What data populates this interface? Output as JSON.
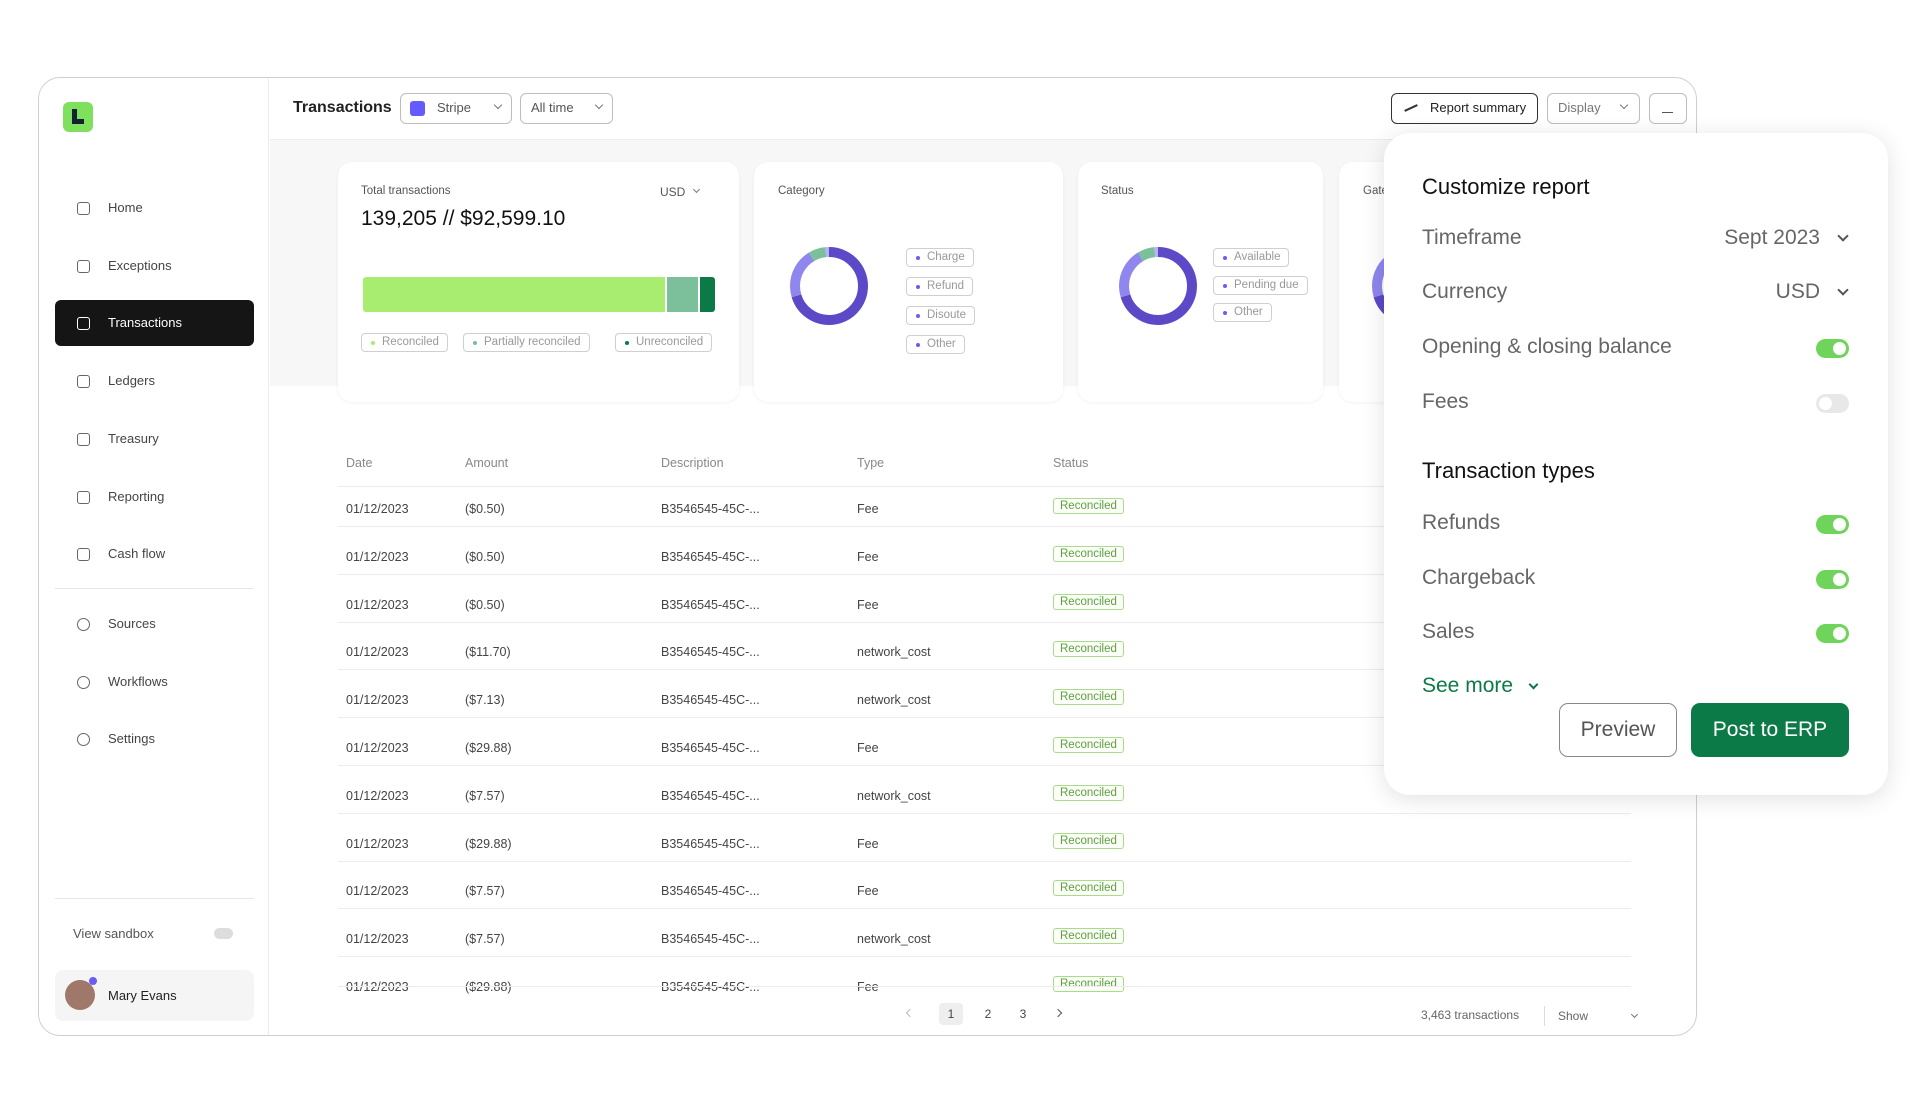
{
  "sidebar": {
    "nav": [
      "Home",
      "Exceptions",
      "Transactions",
      "Ledgers",
      "Treasury",
      "Reporting",
      "Cash flow"
    ],
    "nav2": [
      "Sources",
      "Workflows",
      "Settings"
    ],
    "active": 2,
    "sandbox": "View sandbox",
    "user": "Mary Evans"
  },
  "header": {
    "title": "Transactions",
    "filters": [
      "Stripe",
      "All time"
    ],
    "actions": [
      "Report summary",
      "Display"
    ]
  },
  "cards": {
    "total": {
      "label": "Total transactions",
      "currency": "USD",
      "value": "139,205 // $92,599.10",
      "legend": [
        "Reconciled",
        "Partially reconciled",
        "Unreconciled"
      ]
    },
    "category": {
      "label": "Category",
      "legend": [
        "Charge",
        "Refund",
        "Disoute",
        "Other"
      ]
    },
    "status": {
      "label": "Status",
      "legend": [
        "Available",
        "Pending due",
        "Other"
      ]
    },
    "gateway": {
      "label": "Gate"
    }
  },
  "table": {
    "columns": [
      "Date",
      "Amount",
      "Description",
      "Type",
      "Status"
    ],
    "rows": [
      [
        "01/12/2023",
        "($0.50)",
        "B3546545-45C-...",
        "Fee",
        "Reconciled"
      ],
      [
        "01/12/2023",
        "($0.50)",
        "B3546545-45C-...",
        "Fee",
        "Reconciled"
      ],
      [
        "01/12/2023",
        "($0.50)",
        "B3546545-45C-...",
        "Fee",
        "Reconciled"
      ],
      [
        "01/12/2023",
        "($11.70)",
        "B3546545-45C-...",
        "network_cost",
        "Reconciled"
      ],
      [
        "01/12/2023",
        "($7.13)",
        "B3546545-45C-...",
        "network_cost",
        "Reconciled"
      ],
      [
        "01/12/2023",
        "($29.88)",
        "B3546545-45C-...",
        "Fee",
        "Reconciled"
      ],
      [
        "01/12/2023",
        "($7.57)",
        "B3546545-45C-...",
        "network_cost",
        "Reconciled"
      ],
      [
        "01/12/2023",
        "($29.88)",
        "B3546545-45C-...",
        "Fee",
        "Reconciled"
      ],
      [
        "01/12/2023",
        "($7.57)",
        "B3546545-45C-...",
        "Fee",
        "Reconciled"
      ],
      [
        "01/12/2023",
        "($7.57)",
        "B3546545-45C-...",
        "network_cost",
        "Reconciled"
      ],
      [
        "01/12/2023",
        "($29.88)",
        "B3546545-45C-...",
        "Fee",
        "Reconciled"
      ]
    ]
  },
  "pagination": {
    "pages": [
      "1",
      "2",
      "3"
    ],
    "count": "3,463 transactions",
    "show": "Show"
  },
  "panel": {
    "title": "Customize report",
    "selects": [
      {
        "label": "Timeframe",
        "value": "Sept 2023"
      },
      {
        "label": "Currency",
        "value": "USD"
      }
    ],
    "toggles": [
      {
        "label": "Opening & closing balance",
        "on": true
      },
      {
        "label": "Fees",
        "on": false
      }
    ],
    "section": "Transaction types",
    "types": [
      {
        "label": "Refunds",
        "on": true
      },
      {
        "label": "Chargeback",
        "on": true
      },
      {
        "label": "Sales",
        "on": true
      }
    ],
    "see_more": "See more",
    "preview": "Preview",
    "post": "Post to ERP"
  }
}
